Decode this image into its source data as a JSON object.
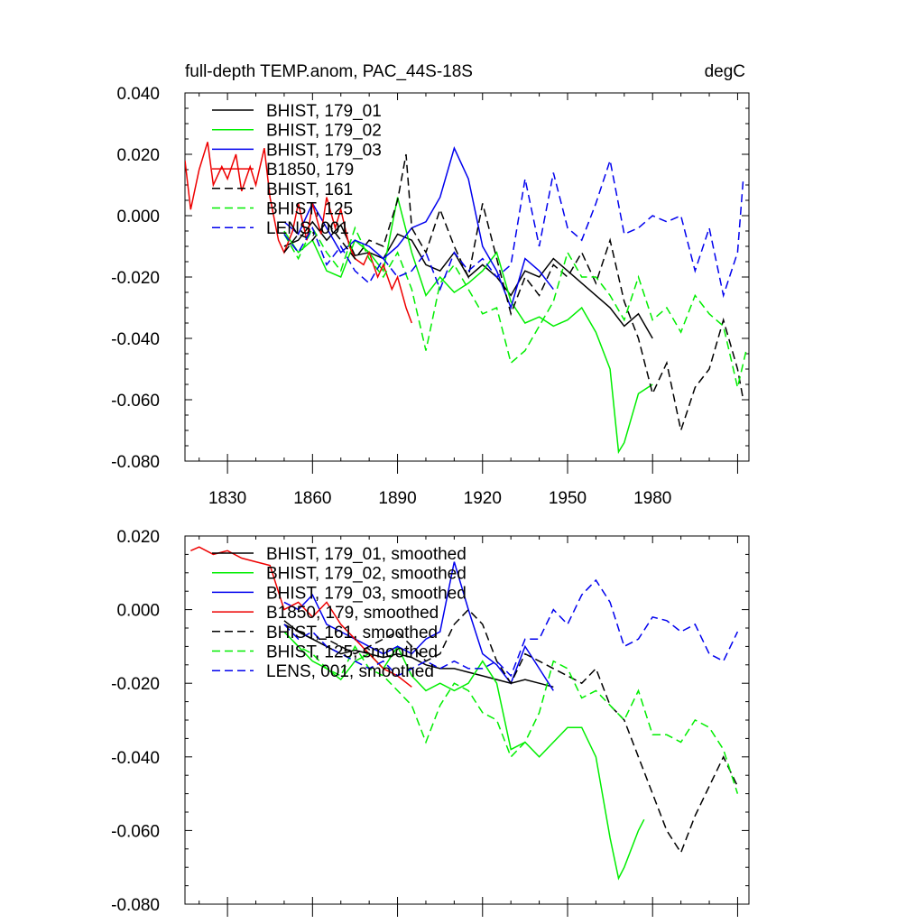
{
  "chart_data": [
    {
      "type": "line",
      "title": "full-depth TEMP.anom, PAC_44S-18S",
      "units": "degC",
      "xlim": [
        1815,
        2014
      ],
      "ylim": [
        -0.08,
        0.04
      ],
      "xticks": [
        1830,
        1860,
        1890,
        1920,
        1950,
        1980
      ],
      "xtick_labels": [
        "1830",
        "1860",
        "1890",
        "1920",
        "1950",
        "1980"
      ],
      "yticks": [
        -0.08,
        -0.06,
        -0.04,
        -0.02,
        0.0,
        0.02,
        0.04
      ],
      "ytick_labels": [
        "-0.080",
        "-0.060",
        "-0.040",
        "-0.020",
        "0.000",
        "0.020",
        "0.040"
      ],
      "legend_position": "top-left",
      "series": [
        {
          "name": "BHIST, 179_01",
          "color": "#000000",
          "dash": "solid",
          "x": [
            1850,
            1855,
            1860,
            1865,
            1870,
            1875,
            1880,
            1885,
            1890,
            1895,
            1900,
            1905,
            1910,
            1915,
            1920,
            1925,
            1930,
            1935,
            1940,
            1945,
            1950,
            1955,
            1960,
            1965,
            1970,
            1975,
            1980
          ],
          "y": [
            -0.01,
            -0.008,
            -0.002,
            -0.008,
            -0.003,
            -0.013,
            -0.012,
            -0.014,
            -0.006,
            -0.008,
            -0.016,
            -0.018,
            -0.012,
            -0.02,
            -0.016,
            -0.02,
            -0.026,
            -0.018,
            -0.02,
            -0.014,
            -0.018,
            -0.022,
            -0.026,
            -0.03,
            -0.036,
            -0.032,
            -0.04
          ]
        },
        {
          "name": "BHIST, 179_02",
          "color": "#00ee00",
          "dash": "solid",
          "x": [
            1850,
            1855,
            1860,
            1865,
            1870,
            1875,
            1880,
            1885,
            1890,
            1895,
            1900,
            1905,
            1910,
            1915,
            1920,
            1925,
            1930,
            1935,
            1940,
            1945,
            1950,
            1955,
            1960,
            1965,
            1968,
            1970,
            1975,
            1980
          ],
          "y": [
            -0.005,
            -0.012,
            -0.008,
            -0.018,
            -0.02,
            -0.008,
            -0.012,
            -0.018,
            0.006,
            -0.012,
            -0.026,
            -0.02,
            -0.025,
            -0.022,
            -0.018,
            -0.012,
            -0.028,
            -0.035,
            -0.033,
            -0.036,
            -0.034,
            -0.03,
            -0.038,
            -0.05,
            -0.077,
            -0.074,
            -0.058,
            -0.055
          ]
        },
        {
          "name": "BHIST, 179_03",
          "color": "#0000ee",
          "dash": "solid",
          "x": [
            1850,
            1855,
            1860,
            1865,
            1870,
            1875,
            1880,
            1885,
            1890,
            1895,
            1900,
            1905,
            1910,
            1915,
            1920,
            1925,
            1930,
            1935,
            1940,
            1945
          ],
          "y": [
            -0.002,
            -0.006,
            0.004,
            -0.004,
            -0.012,
            -0.008,
            -0.01,
            -0.014,
            -0.01,
            -0.004,
            -0.002,
            0.006,
            0.022,
            0.012,
            -0.01,
            -0.018,
            -0.03,
            -0.014,
            -0.018,
            -0.024
          ]
        },
        {
          "name": "B1850, 179",
          "color": "#ee0000",
          "dash": "solid",
          "x": [
            1815,
            1817,
            1820,
            1823,
            1825,
            1828,
            1830,
            1833,
            1835,
            1838,
            1840,
            1843,
            1845,
            1848,
            1850,
            1853,
            1855,
            1858,
            1860,
            1863,
            1865,
            1868,
            1870,
            1873,
            1875,
            1878,
            1880,
            1883,
            1885,
            1888,
            1890,
            1893,
            1895
          ],
          "y": [
            0.018,
            0.002,
            0.015,
            0.024,
            0.01,
            0.016,
            0.012,
            0.02,
            0.008,
            0.016,
            0.01,
            0.022,
            0.006,
            -0.008,
            -0.012,
            -0.005,
            0.004,
            -0.008,
            0.004,
            -0.006,
            0.006,
            -0.004,
            0.002,
            -0.01,
            -0.014,
            -0.016,
            -0.012,
            -0.02,
            -0.016,
            -0.024,
            -0.02,
            -0.03,
            -0.035
          ]
        },
        {
          "name": "BHIST, 161",
          "color": "#000000",
          "dash": "dashed",
          "x": [
            1850,
            1855,
            1860,
            1865,
            1870,
            1875,
            1880,
            1885,
            1890,
            1893,
            1895,
            1900,
            1905,
            1910,
            1915,
            1920,
            1925,
            1930,
            1935,
            1940,
            1945,
            1950,
            1955,
            1960,
            1965,
            1970,
            1975,
            1980,
            1985,
            1990,
            1995,
            2000,
            2005,
            2010,
            2012
          ],
          "y": [
            -0.012,
            -0.006,
            -0.008,
            -0.002,
            -0.008,
            -0.014,
            -0.008,
            -0.01,
            0.005,
            0.02,
            -0.004,
            -0.012,
            0.002,
            -0.01,
            -0.02,
            0.004,
            -0.014,
            -0.032,
            -0.02,
            -0.026,
            -0.016,
            -0.02,
            -0.012,
            -0.022,
            -0.008,
            -0.028,
            -0.04,
            -0.058,
            -0.048,
            -0.07,
            -0.056,
            -0.05,
            -0.034,
            -0.05,
            -0.06
          ]
        },
        {
          "name": "BHIST, 125",
          "color": "#00ee00",
          "dash": "dashed",
          "x": [
            1850,
            1855,
            1860,
            1865,
            1870,
            1875,
            1880,
            1885,
            1890,
            1895,
            1900,
            1905,
            1910,
            1915,
            1920,
            1925,
            1930,
            1935,
            1940,
            1945,
            1950,
            1955,
            1960,
            1965,
            1970,
            1975,
            1980,
            1985,
            1990,
            1995,
            2000,
            2005,
            2010,
            2013
          ],
          "y": [
            -0.006,
            -0.014,
            -0.004,
            -0.012,
            -0.018,
            -0.004,
            -0.014,
            -0.02,
            -0.012,
            -0.024,
            -0.044,
            -0.022,
            -0.016,
            -0.024,
            -0.032,
            -0.03,
            -0.048,
            -0.044,
            -0.036,
            -0.028,
            -0.012,
            -0.02,
            -0.02,
            -0.026,
            -0.034,
            -0.02,
            -0.034,
            -0.03,
            -0.038,
            -0.026,
            -0.032,
            -0.036,
            -0.056,
            -0.044
          ]
        },
        {
          "name": "LENS, 001",
          "color": "#0000ee",
          "dash": "dashed",
          "x": [
            1850,
            1855,
            1860,
            1865,
            1870,
            1875,
            1880,
            1885,
            1890,
            1895,
            1900,
            1905,
            1910,
            1915,
            1920,
            1925,
            1930,
            1935,
            1940,
            1945,
            1950,
            1955,
            1960,
            1965,
            1970,
            1975,
            1980,
            1985,
            1990,
            1995,
            2000,
            2005,
            2010,
            2012
          ],
          "y": [
            -0.006,
            -0.012,
            -0.004,
            -0.016,
            -0.01,
            -0.018,
            -0.022,
            -0.014,
            -0.02,
            -0.018,
            -0.012,
            -0.024,
            -0.012,
            -0.018,
            -0.014,
            -0.02,
            -0.016,
            0.012,
            -0.01,
            0.014,
            -0.004,
            -0.008,
            0.004,
            0.018,
            -0.006,
            -0.004,
            0.0,
            -0.002,
            0.0,
            -0.018,
            -0.004,
            -0.026,
            -0.012,
            0.012
          ]
        }
      ]
    },
    {
      "type": "line",
      "xlim": [
        1815,
        2014
      ],
      "ylim": [
        -0.08,
        0.02
      ],
      "xticks": [
        1830,
        1860,
        1890,
        1920,
        1950,
        1980
      ],
      "yticks": [
        -0.08,
        -0.06,
        -0.04,
        -0.02,
        0.0,
        0.02
      ],
      "ytick_labels": [
        "-0.080",
        "-0.060",
        "-0.040",
        "-0.020",
        "0.000",
        "0.020"
      ],
      "legend_position": "top-left",
      "series": [
        {
          "name": "BHIST, 179_01, smoothed",
          "color": "#000000",
          "dash": "solid",
          "x": [
            1850,
            1855,
            1860,
            1865,
            1870,
            1875,
            1880,
            1885,
            1890,
            1895,
            1900,
            1905,
            1910,
            1915,
            1920,
            1925,
            1930,
            1935,
            1940,
            1945
          ],
          "y": [
            -0.003,
            -0.006,
            -0.008,
            -0.01,
            -0.012,
            -0.011,
            -0.012,
            -0.013,
            -0.012,
            -0.013,
            -0.015,
            -0.016,
            -0.016,
            -0.017,
            -0.018,
            -0.019,
            -0.02,
            -0.019,
            -0.02,
            -0.021
          ]
        },
        {
          "name": "BHIST, 179_02, smoothed",
          "color": "#00ee00",
          "dash": "solid",
          "x": [
            1850,
            1855,
            1860,
            1865,
            1870,
            1875,
            1880,
            1885,
            1890,
            1895,
            1900,
            1905,
            1910,
            1915,
            1920,
            1925,
            1930,
            1935,
            1940,
            1945,
            1950,
            1955,
            1960,
            1965,
            1968,
            1970,
            1975,
            1977
          ],
          "y": [
            -0.006,
            -0.01,
            -0.014,
            -0.016,
            -0.019,
            -0.014,
            -0.012,
            -0.016,
            -0.01,
            -0.018,
            -0.022,
            -0.02,
            -0.022,
            -0.02,
            -0.014,
            -0.02,
            -0.038,
            -0.036,
            -0.04,
            -0.036,
            -0.032,
            -0.032,
            -0.04,
            -0.062,
            -0.073,
            -0.07,
            -0.06,
            -0.057
          ]
        },
        {
          "name": "BHIST, 179_03, smoothed",
          "color": "#0000ee",
          "dash": "solid",
          "x": [
            1850,
            1855,
            1860,
            1865,
            1870,
            1875,
            1880,
            1885,
            1890,
            1895,
            1900,
            1905,
            1910,
            1915,
            1920,
            1925,
            1930,
            1935,
            1940,
            1945
          ],
          "y": [
            0.002,
            0.0,
            0.004,
            -0.004,
            -0.006,
            -0.008,
            -0.01,
            -0.012,
            -0.01,
            -0.012,
            -0.008,
            -0.006,
            0.013,
            0.0,
            -0.012,
            -0.015,
            -0.02,
            -0.01,
            -0.016,
            -0.022
          ]
        },
        {
          "name": "B1850, 179, smoothed",
          "color": "#ee0000",
          "dash": "solid",
          "x": [
            1817,
            1820,
            1825,
            1830,
            1835,
            1840,
            1845,
            1850,
            1855,
            1860,
            1865,
            1870,
            1875,
            1880,
            1885,
            1890,
            1895
          ],
          "y": [
            0.016,
            0.017,
            0.015,
            0.016,
            0.014,
            0.013,
            0.012,
            0.0,
            0.002,
            -0.002,
            0.002,
            -0.004,
            -0.008,
            -0.012,
            -0.016,
            -0.018,
            -0.021
          ]
        },
        {
          "name": "BHIST, 161, smoothed",
          "color": "#000000",
          "dash": "dashed",
          "x": [
            1850,
            1855,
            1860,
            1865,
            1870,
            1875,
            1880,
            1885,
            1890,
            1895,
            1900,
            1905,
            1910,
            1915,
            1920,
            1925,
            1930,
            1935,
            1940,
            1945,
            1950,
            1955,
            1960,
            1965,
            1970,
            1975,
            1980,
            1985,
            1990,
            1995,
            2000,
            2005,
            2010
          ],
          "y": [
            -0.004,
            -0.006,
            -0.008,
            -0.008,
            -0.01,
            -0.012,
            -0.01,
            -0.008,
            -0.006,
            -0.01,
            -0.014,
            -0.012,
            -0.004,
            0.0,
            -0.004,
            -0.014,
            -0.02,
            -0.012,
            -0.014,
            -0.016,
            -0.018,
            -0.02,
            -0.016,
            -0.026,
            -0.03,
            -0.04,
            -0.05,
            -0.06,
            -0.066,
            -0.056,
            -0.048,
            -0.04,
            -0.048
          ]
        },
        {
          "name": "BHIST, 125, smoothed",
          "color": "#00ee00",
          "dash": "dashed",
          "x": [
            1850,
            1855,
            1860,
            1865,
            1870,
            1875,
            1880,
            1885,
            1890,
            1895,
            1900,
            1905,
            1910,
            1915,
            1920,
            1925,
            1930,
            1935,
            1940,
            1945,
            1950,
            1955,
            1960,
            1965,
            1970,
            1975,
            1980,
            1985,
            1990,
            1995,
            2000,
            2005,
            2010
          ],
          "y": [
            -0.006,
            -0.01,
            -0.012,
            -0.016,
            -0.018,
            -0.01,
            -0.016,
            -0.018,
            -0.022,
            -0.026,
            -0.036,
            -0.026,
            -0.02,
            -0.022,
            -0.028,
            -0.03,
            -0.04,
            -0.036,
            -0.028,
            -0.014,
            -0.016,
            -0.024,
            -0.022,
            -0.026,
            -0.03,
            -0.022,
            -0.034,
            -0.034,
            -0.036,
            -0.03,
            -0.032,
            -0.038,
            -0.05
          ]
        },
        {
          "name": "LENS, 001, smoothed",
          "color": "#0000ee",
          "dash": "dashed",
          "x": [
            1850,
            1855,
            1860,
            1865,
            1870,
            1875,
            1880,
            1885,
            1890,
            1895,
            1900,
            1905,
            1910,
            1915,
            1920,
            1925,
            1930,
            1935,
            1940,
            1945,
            1950,
            1955,
            1960,
            1965,
            1970,
            1975,
            1980,
            1985,
            1990,
            1995,
            2000,
            2005,
            2010
          ],
          "y": [
            -0.004,
            -0.008,
            -0.006,
            -0.01,
            -0.012,
            -0.014,
            -0.016,
            -0.014,
            -0.018,
            -0.016,
            -0.014,
            -0.016,
            -0.014,
            -0.016,
            -0.016,
            -0.014,
            -0.018,
            -0.008,
            -0.008,
            0.0,
            -0.004,
            0.004,
            0.008,
            0.002,
            -0.01,
            -0.008,
            -0.002,
            -0.003,
            -0.006,
            -0.004,
            -0.012,
            -0.014,
            -0.006
          ]
        }
      ]
    }
  ]
}
